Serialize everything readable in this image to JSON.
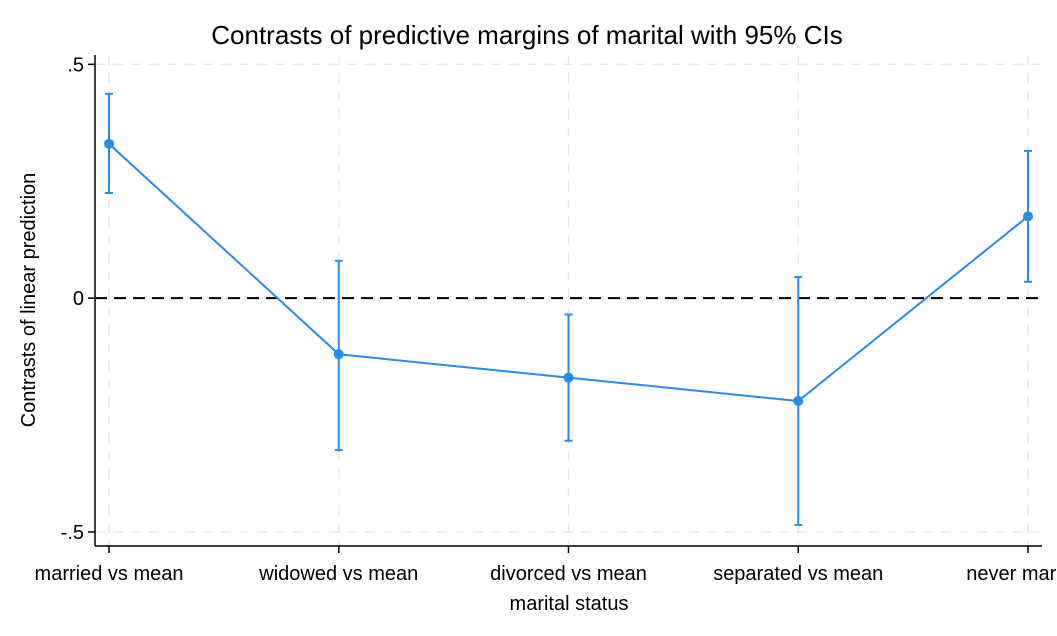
{
  "chart_data": {
    "type": "line",
    "title": "Contrasts of predictive margins of marital with 95% CIs",
    "xlabel": "marital status",
    "ylabel": "Contrasts of linear prediction",
    "categories": [
      "married vs mean",
      "widowed vs mean",
      "divorced vs mean",
      "separated vs mean",
      "never married"
    ],
    "y_ticks": [
      0.5,
      0,
      -0.5
    ],
    "y_tick_labels": [
      ".5",
      "0",
      "-.5"
    ],
    "ylim": [
      -0.53,
      0.52
    ],
    "reference_line": 0,
    "grid": true,
    "series": [
      {
        "values": [
          0.33,
          -0.12,
          -0.17,
          -0.22,
          0.175
        ],
        "ci_lower": [
          0.225,
          -0.325,
          -0.305,
          -0.485,
          0.035
        ],
        "ci_upper": [
          0.437,
          0.08,
          -0.035,
          0.045,
          0.315
        ],
        "color": "#2a8bea"
      }
    ],
    "colors": {
      "series": "#2a8bea",
      "grid": "#e9e9e9",
      "axis": "#000000",
      "reference": "#000000"
    }
  }
}
